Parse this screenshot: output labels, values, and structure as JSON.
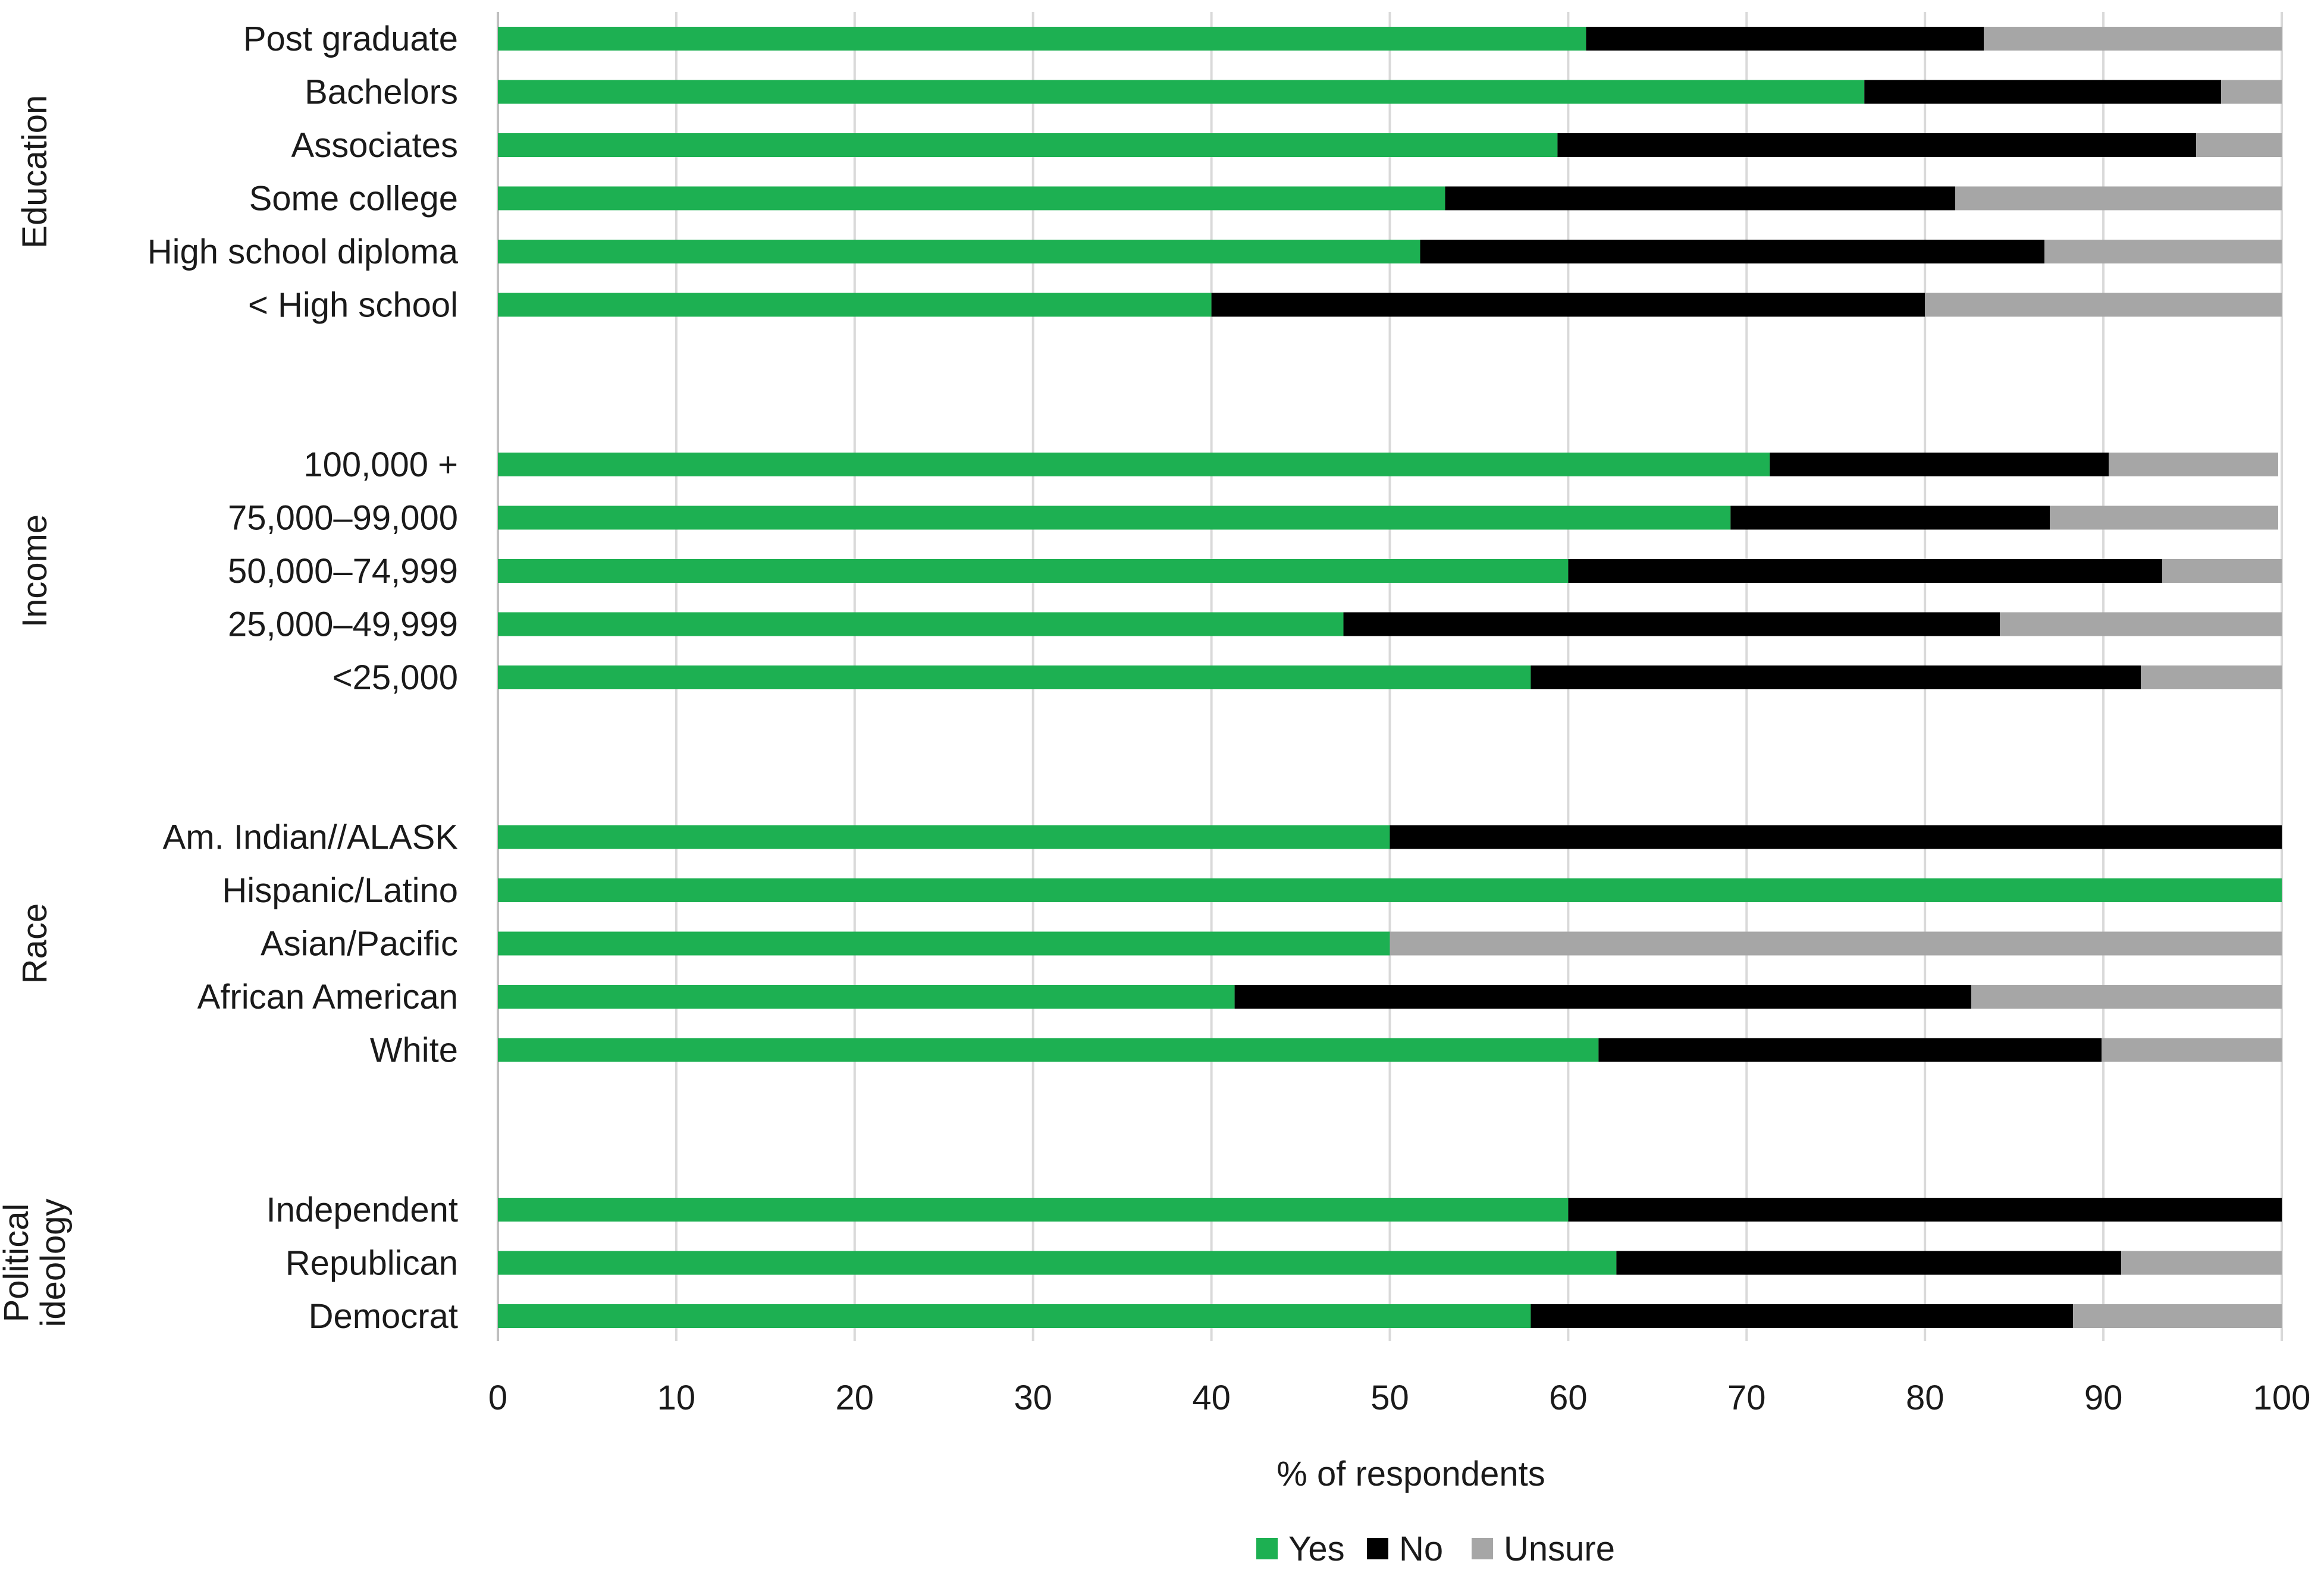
{
  "chart_data": {
    "type": "bar",
    "orientation": "horizontal",
    "stacked": true,
    "xlabel": "% of respondents",
    "xlim": [
      0,
      100
    ],
    "xticks": [
      0,
      10,
      20,
      30,
      40,
      50,
      60,
      70,
      80,
      90,
      100
    ],
    "grid": true,
    "legend_position": "bottom-center",
    "series": [
      {
        "name": "Yes",
        "color": "#1db052"
      },
      {
        "name": "No",
        "color": "#000000"
      },
      {
        "name": "Unsure",
        "color": "#a6a6a6"
      }
    ],
    "groups": [
      {
        "name": "Education",
        "label_lines": [
          "Education"
        ],
        "categories": [
          {
            "label": "Post graduate",
            "values": [
              61,
              22.3,
              16.7
            ]
          },
          {
            "label": "Bachelors",
            "values": [
              76.6,
              20,
              3.4
            ]
          },
          {
            "label": "Associates",
            "values": [
              59.4,
              35.8,
              4.8
            ]
          },
          {
            "label": "Some college",
            "values": [
              53.1,
              28.6,
              18.3
            ]
          },
          {
            "label": "High school diploma",
            "values": [
              51.7,
              35,
              13.3
            ]
          },
          {
            "label": "< High school",
            "values": [
              40,
              40,
              20
            ]
          }
        ]
      },
      {
        "name": "Income",
        "label_lines": [
          "Income"
        ],
        "categories": [
          {
            "label": "100,000 +",
            "values": [
              71.3,
              19,
              9.5
            ]
          },
          {
            "label": "75,000–99,000",
            "values": [
              69.1,
              17.9,
              12.8
            ]
          },
          {
            "label": "50,000–74,999",
            "values": [
              60,
              33.3,
              6.7
            ]
          },
          {
            "label": "25,000–49,999",
            "values": [
              47.4,
              36.8,
              15.8
            ]
          },
          {
            "label": "<25,000",
            "values": [
              57.9,
              34.2,
              7.9
            ]
          }
        ]
      },
      {
        "name": "Race",
        "label_lines": [
          "Race"
        ],
        "categories": [
          {
            "label": "Am. Indian//ALASK",
            "values": [
              50,
              50,
              0
            ]
          },
          {
            "label": "Hispanic/Latino",
            "values": [
              100,
              0,
              0
            ]
          },
          {
            "label": "Asian/Pacific",
            "values": [
              50,
              0,
              50
            ]
          },
          {
            "label": "African American",
            "values": [
              41.3,
              41.3,
              17.4
            ]
          },
          {
            "label": "White",
            "values": [
              61.7,
              28.2,
              10.1
            ]
          }
        ]
      },
      {
        "name": "Political ideology",
        "label_lines": [
          "Political",
          "ideology"
        ],
        "categories": [
          {
            "label": "Independent",
            "values": [
              60,
              40,
              0
            ]
          },
          {
            "label": "Republican",
            "values": [
              62.7,
              28.3,
              9
            ]
          },
          {
            "label": "Democrat",
            "values": [
              57.9,
              30.4,
              11.7
            ]
          }
        ]
      }
    ]
  }
}
